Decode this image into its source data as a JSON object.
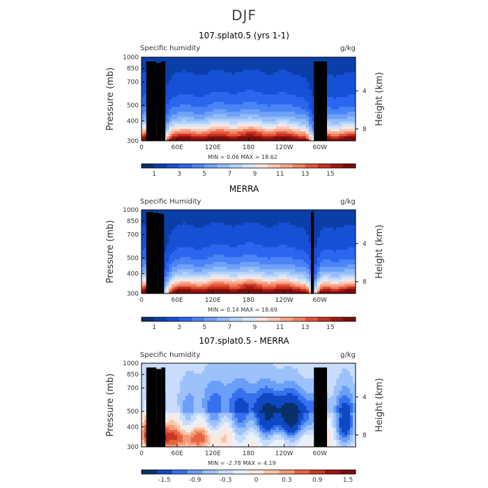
{
  "page_title": "DJF",
  "colors": {
    "full_scale": [
      "#08306b",
      "#0b3fa8",
      "#1650d6",
      "#2a66ee",
      "#4a84f5",
      "#6fa2f8",
      "#93bcf9",
      "#b5d2fa",
      "#d5e5fb",
      "#f6e6e2",
      "#f8c9b7",
      "#f6a78a",
      "#f0815f",
      "#e1553a",
      "#c7301f",
      "#a01812",
      "#7a0c0c"
    ],
    "diff_scale": [
      "#08306b",
      "#0e48c4",
      "#3670ee",
      "#6a9ff7",
      "#9dc1fa",
      "#c8dcfb",
      "#e8f0fc",
      "#fbe7de",
      "#f8c3aa",
      "#f39a78",
      "#e6643f",
      "#cc3523",
      "#9e1212",
      "#7a0c0c"
    ]
  },
  "chart_data": [
    {
      "type": "heatmap",
      "name": "model",
      "title": "107.splat0.5 (yrs 1-1)",
      "left_label": "Specific humidity",
      "right_label": "g/kg",
      "ylabel": "Pressure (mb)",
      "y2label": "Height (km)",
      "xlabel": "",
      "xticks": [
        "0",
        "60E",
        "120E",
        "180",
        "120W",
        "60W"
      ],
      "yticks": [
        "300",
        "400",
        "500",
        "700",
        "850",
        "1000"
      ],
      "y2ticks": [
        "8",
        "4"
      ],
      "xlim": [
        0,
        360
      ],
      "ylim": [
        1000,
        300
      ],
      "stats": "MIN =   0.06   MAX =   18.62",
      "colorbar_labels": [
        "1",
        "3",
        "5",
        "7",
        "9",
        "11",
        "13",
        "15"
      ],
      "levels": [
        0,
        1,
        2,
        3,
        4,
        5,
        6,
        7,
        8,
        9,
        10,
        11,
        12,
        13,
        14,
        15,
        16
      ],
      "dry_lons": [
        35,
        290
      ],
      "moist_peak": 18.62,
      "terrain": [
        [
          8,
          25,
          940
        ],
        [
          25,
          33,
          920
        ],
        [
          33,
          40,
          940
        ],
        [
          290,
          312,
          940
        ]
      ]
    },
    {
      "type": "heatmap",
      "name": "merra",
      "title": "MERRA",
      "left_label": "Specific Humidity",
      "right_label": "g/kg",
      "ylabel": "Pressure (mb)",
      "y2label": "Height (km)",
      "xlabel": "",
      "xticks": [
        "0",
        "60E",
        "120E",
        "180",
        "120W",
        "60W"
      ],
      "yticks": [
        "300",
        "400",
        "500",
        "700",
        "850",
        "1000"
      ],
      "y2ticks": [
        "8",
        "4"
      ],
      "xlim": [
        0,
        360
      ],
      "ylim": [
        1000,
        300
      ],
      "stats": "MIN =   0.14   MAX =   18.69",
      "colorbar_labels": [
        "1",
        "3",
        "5",
        "7",
        "9",
        "11",
        "13",
        "15"
      ],
      "levels": [
        0,
        1,
        2,
        3,
        4,
        5,
        6,
        7,
        8,
        9,
        10,
        11,
        12,
        13,
        14,
        15,
        16
      ],
      "dry_lons": [
        38,
        290
      ],
      "moist_peak": 18.69,
      "terrain": [
        [
          8,
          20,
          970
        ],
        [
          20,
          28,
          960
        ],
        [
          28,
          33,
          950
        ],
        [
          33,
          38,
          940
        ],
        [
          285,
          290,
          975
        ]
      ]
    },
    {
      "type": "heatmap",
      "name": "difference",
      "title": "107.splat0.5 - MERRA",
      "left_label": "Specific humidity",
      "right_label": "g/kg",
      "ylabel": "Pressure (mb)",
      "y2label": "Height (km)",
      "xlabel": "",
      "xticks": [
        "0",
        "60E",
        "120E",
        "180",
        "120W",
        "60W"
      ],
      "yticks": [
        "300",
        "400",
        "500",
        "700",
        "850",
        "1000"
      ],
      "y2ticks": [
        "8",
        "4"
      ],
      "xlim": [
        0,
        360
      ],
      "ylim": [
        1000,
        300
      ],
      "stats": "MIN =  -2.78   MAX =   4.19",
      "colorbar_labels": [
        "-1.5",
        "-0.9",
        "-0.3",
        "0",
        "0.3",
        "0.9",
        "1.5"
      ],
      "levels": [
        -2.1,
        -1.5,
        -1.2,
        -0.9,
        -0.6,
        -0.3,
        0,
        0.3,
        0.6,
        0.9,
        1.2,
        1.5,
        2.1
      ],
      "min": -2.78,
      "max": 4.19,
      "terrain": [
        [
          8,
          25,
          940
        ],
        [
          25,
          33,
          920
        ],
        [
          33,
          40,
          940
        ],
        [
          290,
          312,
          940
        ]
      ]
    }
  ]
}
